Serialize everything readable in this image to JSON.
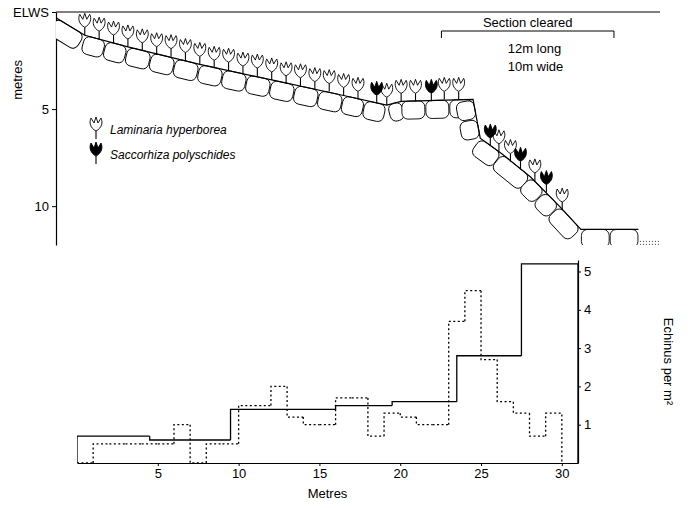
{
  "chart_data": [
    {
      "type": "line",
      "y_label": "metres",
      "xlim": [
        0,
        42
      ],
      "ylim": [
        0,
        12
      ],
      "yticks": [
        {
          "value": 0,
          "label": "ELWS"
        },
        5,
        10
      ],
      "tick_labels": "y",
      "legend": "left",
      "series": [
        {
          "type": "line",
          "color": "#000000",
          "x": [
            0,
            2,
            5,
            10,
            15,
            20,
            23,
            24,
            29,
            29.5,
            31,
            33,
            35,
            36.5,
            40.5
          ],
          "values": [
            0.3,
            1.2,
            1.8,
            2.7,
            3.5,
            4.3,
            4.8,
            4.6,
            4.5,
            6.5,
            7.3,
            8.5,
            10.0,
            11.2,
            11.2
          ]
        },
        {
          "name": "Laminaria hyperborea",
          "type": "scatter",
          "marker": "kelp",
          "color": "#ffffff",
          "x": [
            2,
            3,
            4,
            5,
            6,
            7,
            8,
            9,
            10,
            11,
            12,
            13,
            14,
            15,
            16,
            17,
            18,
            19,
            20,
            21,
            23,
            24,
            25,
            27,
            28,
            30.8,
            31.6,
            33.3,
            35.2
          ],
          "values": [
            1.2,
            1.4,
            1.6,
            1.8,
            2.0,
            2.2,
            2.3,
            2.5,
            2.7,
            2.9,
            3.0,
            3.2,
            3.3,
            3.5,
            3.7,
            3.8,
            4.0,
            4.1,
            4.3,
            4.5,
            4.8,
            4.6,
            4.6,
            4.5,
            4.5,
            7.2,
            7.7,
            8.7,
            10.2
          ]
        },
        {
          "name": "Saccorhiza polyschides",
          "type": "scatter",
          "marker": "kelp",
          "color": "#000000",
          "x": [
            22.3,
            26.1,
            30.2,
            32.3,
            34.1
          ],
          "values": [
            4.7,
            4.6,
            6.9,
            8.1,
            9.3
          ]
        }
      ],
      "annotations": [
        {
          "text": "Section cleared",
          "x": [
            26.8,
            38.8
          ]
        },
        {
          "text": "12m long"
        },
        {
          "text": "10m wide"
        }
      ]
    },
    {
      "type": "step",
      "x_label": "Metres",
      "y_label": "Echinus per m²",
      "xlim": [
        0,
        31
      ],
      "ylim": [
        0,
        5.3
      ],
      "xticks": [
        5,
        10,
        15,
        20,
        25,
        30
      ],
      "yticks": [
        1,
        2,
        3,
        4,
        5
      ],
      "series": [
        {
          "line_style": "solid",
          "color": "#000000",
          "bins": [
            0,
            4.5,
            9.5,
            16,
            19.5,
            23.5,
            27.5,
            31
          ],
          "values": [
            0.7,
            0.6,
            1.4,
            1.5,
            1.6,
            2.8,
            5.2
          ]
        },
        {
          "line_style": "dotted",
          "color": "#000000",
          "bins": [
            0,
            1,
            2,
            3,
            4,
            5,
            6,
            7,
            8,
            9,
            10,
            11,
            12,
            13,
            14,
            15,
            16,
            17,
            18,
            19,
            20,
            21,
            22,
            23,
            24,
            25,
            26,
            27,
            28,
            29,
            30
          ],
          "values": [
            0,
            0.5,
            0.5,
            0.5,
            0.5,
            0.5,
            1.0,
            0,
            0.5,
            0.5,
            1.5,
            1.5,
            2.0,
            1.2,
            1.0,
            1.0,
            1.7,
            1.7,
            0.7,
            1.3,
            1.2,
            1.0,
            1.0,
            3.7,
            4.5,
            2.7,
            1.6,
            1.3,
            0.7,
            1.3
          ]
        }
      ]
    }
  ]
}
